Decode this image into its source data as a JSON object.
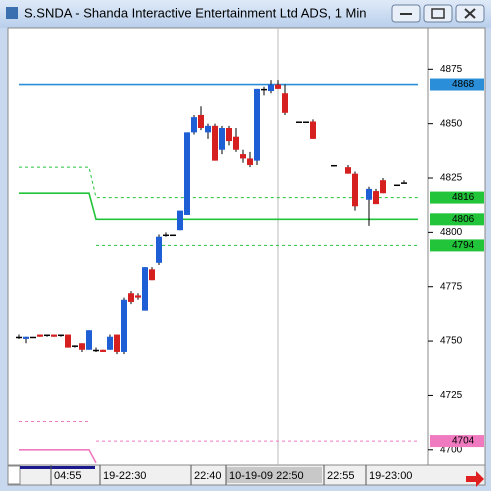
{
  "chart_data": {
    "type": "candlestick",
    "title": "S.SNDA - Shanda Interactive Entertainment Ltd ADS, 1 Min",
    "categories": [
      null,
      null,
      null,
      null,
      null,
      "04:55",
      null,
      null,
      null,
      null,
      null,
      null,
      "19-22:30",
      null,
      null,
      null,
      null,
      null,
      null,
      null,
      null,
      null,
      null,
      null,
      null,
      "22:40",
      null,
      null,
      null,
      null,
      "10-19-09 22:50",
      null,
      null,
      null,
      null,
      null,
      null,
      null,
      null,
      null,
      null,
      null,
      null,
      null,
      "22:55",
      null,
      null,
      null,
      null,
      null,
      "19-23:00",
      null,
      null,
      null,
      null,
      null,
      null,
      null
    ],
    "highlighted_category": "10-19-09 22:50",
    "open": [
      4752,
      4751,
      4752,
      4753,
      4753,
      4753,
      4753,
      4753,
      4748,
      4749,
      4746,
      4746,
      4746,
      4746,
      4753,
      4745,
      4772,
      4771,
      4764,
      4783,
      4786,
      4799,
      4799,
      4801,
      4808,
      4846,
      4854,
      4846,
      4849,
      4838,
      4848,
      4844,
      4836,
      4834,
      4833,
      4866,
      4865,
      4868,
      4864,
      null,
      4851,
      4851,
      4851,
      null,
      null,
      4831,
      null,
      4830,
      4827,
      null,
      4815,
      4819,
      4824,
      null,
      4822,
      4823,
      null,
      null
    ],
    "high": [
      4753,
      4752,
      4752,
      4753,
      4753,
      4753,
      4753,
      4753,
      4748,
      4749,
      4755,
      4747,
      4746,
      4753,
      4753,
      4770,
      4773,
      4772,
      4784,
      4784,
      4799,
      4800,
      4799,
      4810,
      4846,
      4854,
      4858,
      4850,
      4850,
      4849,
      4849,
      4848,
      4838,
      4837,
      4866,
      4867,
      4870,
      4870,
      4868,
      null,
      4851,
      4851,
      4852,
      null,
      null,
      4831,
      null,
      4831,
      4828,
      null,
      4821,
      4820,
      4825,
      null,
      4822,
      4824,
      null,
      null
    ],
    "low": [
      4751,
      4749,
      4752,
      4752,
      4752,
      4752,
      4752,
      4747,
      4747,
      4745,
      4746,
      4745,
      4745,
      4746,
      4744,
      4744,
      4767,
      4769,
      4764,
      4778,
      4785,
      4798,
      4799,
      4801,
      4808,
      4845,
      4847,
      4843,
      4833,
      4836,
      4840,
      4837,
      4832,
      4830,
      4831,
      4863,
      4864,
      4866,
      4854,
      null,
      4851,
      4851,
      4843,
      null,
      null,
      4831,
      null,
      4827,
      4810,
      null,
      4803,
      4813,
      4818,
      null,
      4822,
      4823,
      null,
      null
    ],
    "close": [
      4752,
      4752,
      4752,
      4752,
      4753,
      4752,
      4753,
      4747,
      4748,
      4746,
      4755,
      4746,
      4745,
      4752,
      4745,
      4769,
      4768,
      4770,
      4784,
      4778,
      4798,
      4799,
      4799,
      4810,
      4846,
      4853,
      4848,
      4849,
      4833,
      4848,
      4842,
      4838,
      4834,
      4831,
      4866,
      4866,
      4868,
      4866,
      4855,
      null,
      4851,
      4851,
      4843,
      null,
      null,
      4831,
      null,
      4827,
      4812,
      null,
      4820,
      4813,
      4818,
      null,
      4822,
      4823,
      null,
      null
    ],
    "up_color": "#1f5fd6",
    "down_color": "#d62020",
    "flat_color": "#000000",
    "ylim": [
      4693,
      4894
    ],
    "yticks": [
      4700,
      4725,
      4750,
      4775,
      4800,
      4825,
      4850,
      4875
    ],
    "overlays": [
      {
        "color": "#2a8fd8",
        "dashed": false,
        "tag": true,
        "values": [
          4868,
          4868,
          4868,
          4868,
          4868,
          4868,
          4868,
          4868,
          4868,
          4868,
          4868,
          4868,
          4868,
          4868,
          4868,
          4868,
          4868,
          4868,
          4868,
          4868,
          4868,
          4868,
          4868,
          4868,
          4868,
          4868,
          4868,
          4868,
          4868,
          4868,
          4868,
          4868,
          4868,
          4868,
          4868,
          4868,
          4868,
          4868,
          4868,
          4868,
          4868,
          4868,
          4868,
          4868,
          4868,
          4868,
          4868,
          4868,
          4868,
          4868,
          4868,
          4868,
          4868,
          4868,
          4868,
          4868,
          4868,
          4868
        ]
      },
      {
        "color": "#22c43a",
        "dashed": true,
        "tag": true,
        "values": [
          4830,
          4830,
          4830,
          4830,
          4830,
          4830,
          4830,
          4830,
          4830,
          4830,
          4830,
          4816,
          4816,
          4816,
          4816,
          4816,
          4816,
          4816,
          4816,
          4816,
          4816,
          4816,
          4816,
          4816,
          4816,
          4816,
          4816,
          4816,
          4816,
          4816,
          4816,
          4816,
          4816,
          4816,
          4816,
          4816,
          4816,
          4816,
          4816,
          4816,
          4816,
          4816,
          4816,
          4816,
          4816,
          4816,
          4816,
          4816,
          4816,
          4816,
          4816,
          4816,
          4816,
          4816,
          4816,
          4816,
          4816,
          4816
        ]
      },
      {
        "color": "#22c43a",
        "dashed": false,
        "tag": true,
        "values": [
          4818,
          4818,
          4818,
          4818,
          4818,
          4818,
          4818,
          4818,
          4818,
          4818,
          4818,
          4806,
          4806,
          4806,
          4806,
          4806,
          4806,
          4806,
          4806,
          4806,
          4806,
          4806,
          4806,
          4806,
          4806,
          4806,
          4806,
          4806,
          4806,
          4806,
          4806,
          4806,
          4806,
          4806,
          4806,
          4806,
          4806,
          4806,
          4806,
          4806,
          4806,
          4806,
          4806,
          4806,
          4806,
          4806,
          4806,
          4806,
          4806,
          4806,
          4806,
          4806,
          4806,
          4806,
          4806,
          4806,
          4806,
          4806
        ]
      },
      {
        "color": "#22c43a",
        "dashed": true,
        "tag": true,
        "values": [
          null,
          null,
          null,
          null,
          null,
          null,
          null,
          null,
          null,
          null,
          null,
          4794,
          4794,
          4794,
          4794,
          4794,
          4794,
          4794,
          4794,
          4794,
          4794,
          4794,
          4794,
          4794,
          4794,
          4794,
          4794,
          4794,
          4794,
          4794,
          4794,
          4794,
          4794,
          4794,
          4794,
          4794,
          4794,
          4794,
          4794,
          4794,
          4794,
          4794,
          4794,
          4794,
          4794,
          4794,
          4794,
          4794,
          4794,
          4794,
          4794,
          4794,
          4794,
          4794,
          4794,
          4794,
          4794,
          4794
        ]
      },
      {
        "color": "#f07ac0",
        "dashed": true,
        "tag": false,
        "values": [
          4713,
          4713,
          4713,
          4713,
          4713,
          4713,
          4713,
          4713,
          4713,
          4713,
          4713,
          null,
          null,
          null,
          null,
          null,
          null,
          null,
          null,
          null,
          null,
          null,
          null,
          null,
          null,
          null,
          null,
          null,
          null,
          null,
          null,
          null,
          null,
          null,
          null,
          null,
          null,
          null,
          null,
          null,
          null,
          null,
          null,
          null,
          null,
          null,
          null,
          null,
          null,
          null,
          null,
          null,
          null,
          null,
          null,
          null,
          null,
          null
        ]
      },
      {
        "color": "#f07ac0",
        "dashed": false,
        "tag": false,
        "values": [
          4700,
          4700,
          4700,
          4700,
          4700,
          4700,
          4700,
          4700,
          4700,
          4700,
          4700,
          4694,
          null,
          null,
          null,
          null,
          null,
          null,
          null,
          null,
          null,
          null,
          null,
          null,
          null,
          null,
          null,
          null,
          null,
          null,
          null,
          null,
          null,
          null,
          null,
          null,
          null,
          null,
          null,
          null,
          null,
          null,
          null,
          null,
          null,
          null,
          null,
          null,
          null,
          null,
          null,
          null,
          null,
          null,
          null,
          null,
          null,
          null
        ]
      },
      {
        "color": "#f07ac0",
        "dashed": true,
        "tag": true,
        "values": [
          null,
          null,
          null,
          null,
          null,
          null,
          null,
          null,
          null,
          null,
          null,
          4704,
          4704,
          4704,
          4704,
          4704,
          4704,
          4704,
          4704,
          4704,
          4704,
          4704,
          4704,
          4704,
          4704,
          4704,
          4704,
          4704,
          4704,
          4704,
          4704,
          4704,
          4704,
          4704,
          4704,
          4704,
          4704,
          4704,
          4704,
          4704,
          4704,
          4704,
          4704,
          4704,
          4704,
          4704,
          4704,
          4704,
          4704,
          4704,
          4704,
          4704,
          4704,
          4704,
          4704,
          4704,
          4704,
          4704
        ]
      }
    ]
  }
}
